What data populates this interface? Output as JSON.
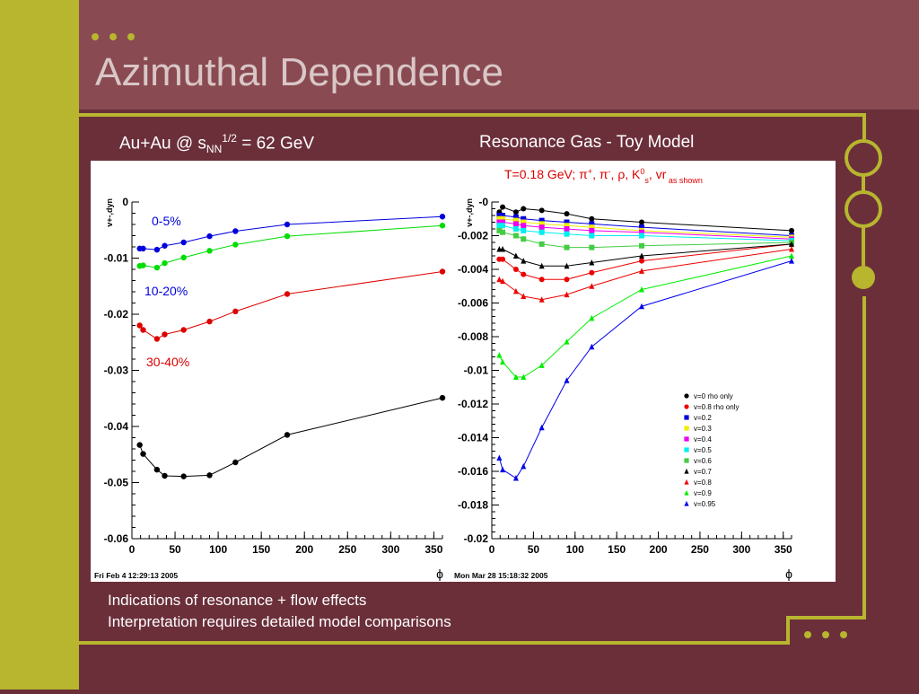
{
  "slide": {
    "title": "Azimuthal Dependence",
    "subtitle_left": {
      "main": "Au+Au @ s",
      "sub": "NN",
      "sup": "1/2",
      "tail": " = 62 GeV"
    },
    "subtitle_right": "Resonance Gas - Toy Model",
    "notes": [
      "Indications of resonance + flow effects",
      "Interpretation requires detailed model comparisons"
    ],
    "colors": {
      "background": "#6b2f3a",
      "band": "#8a4a52",
      "accent": "#b7b62e",
      "title": "#d9c7c7"
    }
  },
  "chart_data": [
    {
      "type": "line",
      "ylabel": "v+-,dyn",
      "xlabel": "ϕ",
      "footer": "Fri Feb  4 12:29:13 2005",
      "xlim": [
        0,
        360
      ],
      "ylim": [
        -0.06,
        0
      ],
      "xticks": [
        0,
        50,
        100,
        150,
        200,
        250,
        300,
        350
      ],
      "xtick_labels": [
        "0",
        "50",
        "100",
        "150",
        "200",
        "250",
        "300",
        "350"
      ],
      "yticks": [
        0,
        -0.01,
        -0.02,
        -0.03,
        -0.04,
        -0.05,
        -0.06
      ],
      "ytick_labels": [
        "0",
        "-0.01",
        "-0.02",
        "-0.03",
        "-0.04",
        "-0.05",
        "-0.06"
      ],
      "x": [
        9,
        13,
        29,
        38,
        60,
        90,
        120,
        180,
        360
      ],
      "series": [
        {
          "name": "0-5%",
          "color": "#0000dd",
          "marker": "circle",
          "values": [
            -0.0083,
            -0.0083,
            -0.0085,
            -0.0078,
            -0.0072,
            -0.0061,
            -0.0052,
            -0.004,
            -0.0026
          ]
        },
        {
          "name": "10-20%",
          "color": "#00dd00",
          "marker": "circle",
          "values": [
            -0.0114,
            -0.0113,
            -0.0117,
            -0.0109,
            -0.0099,
            -0.0087,
            -0.0076,
            -0.0061,
            -0.0042
          ]
        },
        {
          "name": "30-40%",
          "color": "#dd0000",
          "marker": "circle",
          "values": [
            -0.022,
            -0.0228,
            -0.0244,
            -0.0236,
            -0.0228,
            -0.0213,
            -0.0195,
            -0.0164,
            -0.0124
          ]
        },
        {
          "name": "",
          "color": "#000000",
          "marker": "circle",
          "values": [
            -0.0433,
            -0.0449,
            -0.0477,
            -0.0488,
            -0.0489,
            -0.0487,
            -0.0464,
            -0.0415,
            -0.0349
          ]
        }
      ],
      "annotations": [
        {
          "text": "0-5%",
          "color": "#0000dd"
        },
        {
          "text": "10-20%",
          "color": "#0000dd"
        },
        {
          "text": "30-40%",
          "color": "#dd0000"
        }
      ]
    },
    {
      "type": "line",
      "title_parts": [
        "T=0.18 GeV; ",
        "π",
        "+",
        ", ",
        "π",
        "-",
        ", ",
        "ρ",
        ", K",
        "0",
        "s",
        ", v",
        "r",
        " as shown"
      ],
      "ylabel": "v+-,dyn",
      "xlabel": "ϕ",
      "footer": "Mon Mar 28 15:18:32 2005",
      "xlim": [
        0,
        360
      ],
      "ylim": [
        -0.02,
        0
      ],
      "xticks": [
        0,
        50,
        100,
        150,
        200,
        250,
        300,
        350
      ],
      "xtick_labels": [
        "0",
        "50",
        "100",
        "150",
        "200",
        "250",
        "300",
        "350"
      ],
      "yticks": [
        0,
        -0.002,
        -0.004,
        -0.006,
        -0.008,
        -0.01,
        -0.012,
        -0.014,
        -0.016,
        -0.018,
        -0.02
      ],
      "ytick_labels": [
        "-0",
        "-0.002",
        "-0.004",
        "-0.006",
        "-0.008",
        "-0.01",
        "-0.012",
        "-0.014",
        "-0.016",
        "-0.018",
        "-0.02"
      ],
      "x": [
        9,
        13,
        29,
        38,
        60,
        90,
        120,
        180,
        360
      ],
      "series": [
        {
          "name": "v=0 rho only",
          "color": "#000000",
          "marker": "circle",
          "values": [
            -0.0006,
            -0.0003,
            -0.0006,
            -0.0004,
            -0.0005,
            -0.0007,
            -0.001,
            -0.0012,
            -0.0017
          ]
        },
        {
          "name": "v=0.8 rho only",
          "color": "#ee0000",
          "marker": "circle",
          "values": [
            -0.0034,
            -0.0034,
            -0.004,
            -0.0043,
            -0.0046,
            -0.0046,
            -0.0042,
            -0.0035,
            -0.0025
          ]
        },
        {
          "name": "v=0.2",
          "color": "#0000dd",
          "marker": "square",
          "values": [
            -0.0008,
            -0.0008,
            -0.0009,
            -0.001,
            -0.0011,
            -0.0012,
            -0.0013,
            -0.0015,
            -0.002
          ]
        },
        {
          "name": "v=0.3",
          "color": "#eeee00",
          "marker": "square",
          "values": [
            -0.001,
            -0.001,
            -0.0011,
            -0.0012,
            -0.0013,
            -0.0014,
            -0.0015,
            -0.0017,
            -0.0021
          ]
        },
        {
          "name": "v=0.4",
          "color": "#ee00ee",
          "marker": "square",
          "values": [
            -0.0012,
            -0.0012,
            -0.0013,
            -0.0014,
            -0.0015,
            -0.0016,
            -0.0017,
            -0.0018,
            -0.0022
          ]
        },
        {
          "name": "v=0.5",
          "color": "#00eeee",
          "marker": "square",
          "values": [
            -0.0014,
            -0.0014,
            -0.0016,
            -0.0017,
            -0.0018,
            -0.0019,
            -0.002,
            -0.002,
            -0.0023
          ]
        },
        {
          "name": "v=0.6",
          "color": "#44cc44",
          "marker": "square",
          "values": [
            -0.0017,
            -0.0018,
            -0.002,
            -0.0022,
            -0.0025,
            -0.0027,
            -0.0027,
            -0.0026,
            -0.0024
          ]
        },
        {
          "name": "v=0.7",
          "color": "#000000",
          "marker": "triangle",
          "values": [
            -0.0028,
            -0.0028,
            -0.0032,
            -0.0035,
            -0.0038,
            -0.0038,
            -0.0036,
            -0.0032,
            -0.0025
          ]
        },
        {
          "name": "v=0.8",
          "color": "#ee0000",
          "marker": "triangle",
          "values": [
            -0.0046,
            -0.0047,
            -0.0053,
            -0.0056,
            -0.0058,
            -0.0055,
            -0.005,
            -0.0041,
            -0.0028
          ]
        },
        {
          "name": "v=0.9",
          "color": "#00ee00",
          "marker": "triangle",
          "values": [
            -0.0091,
            -0.0095,
            -0.0104,
            -0.0104,
            -0.0097,
            -0.0083,
            -0.0069,
            -0.0052,
            -0.0032
          ]
        },
        {
          "name": "v=0.95",
          "color": "#0000ee",
          "marker": "triangle",
          "values": [
            -0.0152,
            -0.0159,
            -0.0164,
            -0.0157,
            -0.0134,
            -0.0106,
            -0.0086,
            -0.0062,
            -0.0035
          ]
        }
      ],
      "legend": "bottom-right"
    }
  ]
}
